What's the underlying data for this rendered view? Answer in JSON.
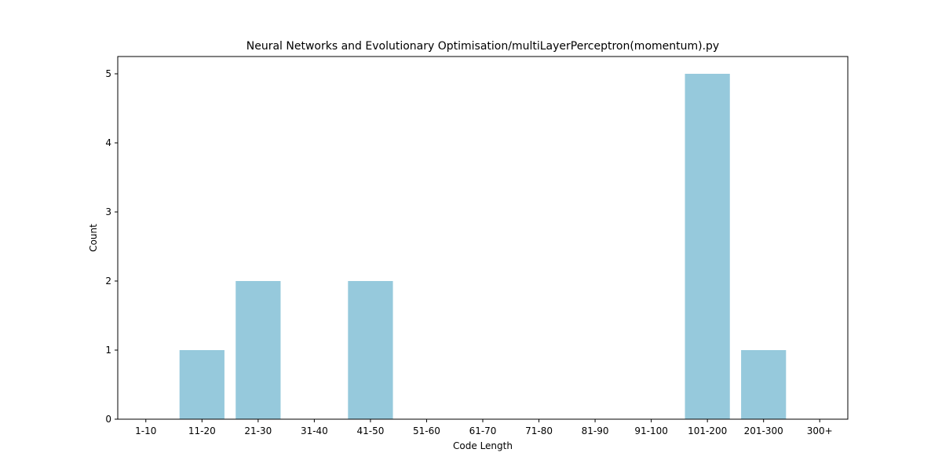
{
  "chart_data": {
    "type": "bar",
    "title": "Neural Networks and Evolutionary Optimisation/multiLayerPerceptron(momentum).py",
    "xlabel": "Code Length",
    "ylabel": "Count",
    "categories": [
      "1-10",
      "11-20",
      "21-30",
      "31-40",
      "41-50",
      "51-60",
      "61-70",
      "71-80",
      "81-90",
      "91-100",
      "101-200",
      "201-300",
      "300+"
    ],
    "values": [
      0,
      1,
      2,
      0,
      2,
      0,
      0,
      0,
      0,
      0,
      5,
      1,
      0
    ],
    "ylim": [
      0,
      5.25
    ],
    "yticks": [
      0,
      1,
      2,
      3,
      4,
      5
    ],
    "grid": false,
    "bar_color": "#96c9dc"
  }
}
